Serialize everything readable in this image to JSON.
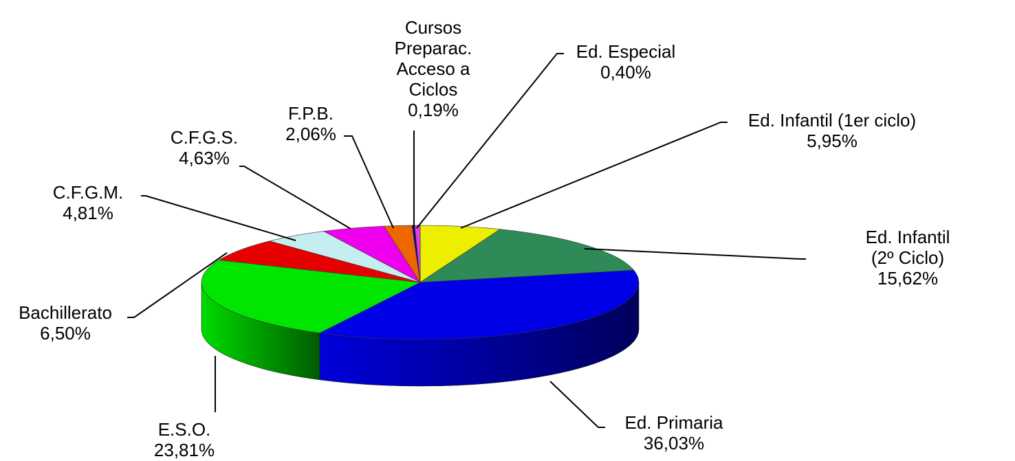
{
  "chart_data": {
    "type": "pie3d",
    "categories": [
      "Ed. Infantil (1er ciclo)",
      "Ed. Infantil (2º Ciclo)",
      "Ed. Primaria",
      "E.S.O.",
      "Bachillerato",
      "C.F.G.M.",
      "C.F.G.S.",
      "F.P.B.",
      "Cursos\nPreparac.\nAcceso a\nCiclos",
      "Ed. Especial"
    ],
    "values": [
      5.95,
      15.62,
      36.03,
      23.81,
      6.5,
      4.81,
      4.63,
      2.06,
      0.19,
      0.4
    ],
    "value_labels": [
      "5,95%",
      "15,62%",
      "36,03%",
      "23,81%",
      "6,50%",
      "4,81%",
      "4,63%",
      "2,06%",
      "0,19%",
      "0,40%"
    ],
    "colors": [
      "#eeee00",
      "#2e8b57",
      "#0000e6",
      "#00e600",
      "#e60000",
      "#c4eef0",
      "#ee00ee",
      "#ee6600",
      "#000080",
      "#e040e0"
    ]
  }
}
